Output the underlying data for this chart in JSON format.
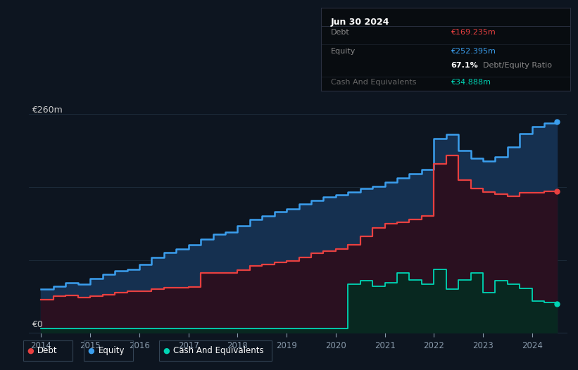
{
  "bg_color": "#0d1520",
  "plot_bg_color": "#0d1520",
  "grid_color": "#1e2d3d",
  "equity_color": "#3b9eed",
  "debt_color": "#e84040",
  "cash_color": "#00d4b4",
  "equity_fill_color": "#153050",
  "debt_fill_color": "#2a1020",
  "cash_fill_color": "#082820",
  "ylabel_text": "€260m",
  "y0_text": "€0",
  "tooltip": {
    "date": "Jun 30 2024",
    "debt_label": "Debt",
    "debt_value": "€169.235m",
    "equity_label": "Equity",
    "equity_value": "€252.395m",
    "ratio_bold": "67.1%",
    "ratio_label": "Debt/Equity Ratio",
    "cash_label": "Cash And Equivalents",
    "cash_value": "€34.888m",
    "bg": "#080c10",
    "border": "#2a3040",
    "header_sep": "#2a3040",
    "row_sep": "#1e2530"
  },
  "years": [
    2014.0,
    2014.25,
    2014.5,
    2014.75,
    2015.0,
    2015.25,
    2015.5,
    2015.75,
    2016.0,
    2016.25,
    2016.5,
    2016.75,
    2017.0,
    2017.25,
    2017.5,
    2017.75,
    2018.0,
    2018.25,
    2018.5,
    2018.75,
    2019.0,
    2019.25,
    2019.5,
    2019.75,
    2020.0,
    2020.25,
    2020.5,
    2020.75,
    2021.0,
    2021.25,
    2021.5,
    2021.75,
    2022.0,
    2022.25,
    2022.5,
    2022.75,
    2023.0,
    2023.25,
    2023.5,
    2023.75,
    2024.0,
    2024.25,
    2024.5
  ],
  "equity": [
    52,
    56,
    60,
    58,
    65,
    70,
    74,
    76,
    82,
    90,
    96,
    100,
    105,
    112,
    118,
    120,
    128,
    135,
    140,
    145,
    148,
    154,
    158,
    162,
    165,
    168,
    172,
    175,
    180,
    185,
    190,
    195,
    232,
    237,
    218,
    208,
    205,
    210,
    222,
    238,
    246,
    250,
    252
  ],
  "debt": [
    40,
    44,
    45,
    42,
    44,
    46,
    48,
    50,
    50,
    52,
    54,
    54,
    55,
    72,
    72,
    72,
    75,
    80,
    82,
    84,
    86,
    90,
    95,
    98,
    100,
    105,
    115,
    125,
    130,
    132,
    135,
    140,
    202,
    212,
    182,
    172,
    168,
    166,
    163,
    167,
    167,
    169,
    169
  ],
  "cash": [
    5,
    5,
    5,
    5,
    5,
    5,
    5,
    5,
    5,
    5,
    5,
    5,
    5,
    5,
    5,
    5,
    5,
    5,
    5,
    5,
    5,
    5,
    5,
    5,
    5,
    58,
    62,
    56,
    60,
    72,
    63,
    58,
    76,
    52,
    63,
    72,
    48,
    62,
    58,
    53,
    38,
    36,
    35
  ],
  "xmin": 2013.75,
  "xmax": 2024.7,
  "ymin": 0,
  "ymax": 278,
  "xticks": [
    2014,
    2015,
    2016,
    2017,
    2018,
    2019,
    2020,
    2021,
    2022,
    2023,
    2024
  ],
  "grid_levels": [
    0,
    87,
    174,
    261
  ],
  "legend_items": [
    "Debt",
    "Equity",
    "Cash And Equivalents"
  ],
  "legend_colors": [
    "#e84040",
    "#3b9eed",
    "#00d4b4"
  ]
}
